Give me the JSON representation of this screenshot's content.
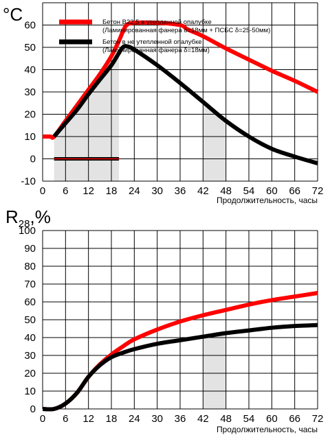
{
  "chart_data": [
    {
      "type": "line",
      "title": "",
      "ylabel": "°C",
      "xlabel": "Продолжительность, часы",
      "xlim": [
        0,
        72
      ],
      "ylim": [
        -10,
        70
      ],
      "xticks": [
        0,
        6,
        12,
        18,
        24,
        30,
        36,
        42,
        48,
        54,
        60,
        66,
        72
      ],
      "yticks": [
        -10,
        0,
        10,
        20,
        30,
        40,
        50,
        60
      ],
      "grid": true,
      "legend_position": "top",
      "shaded_regions": [
        {
          "x0": 3,
          "x1": 20,
          "y0": -10,
          "y1": "curve"
        },
        {
          "x0": 42,
          "x1": 48,
          "y0": -10,
          "y1": "curve"
        }
      ],
      "annotations": [
        {
          "type": "hline",
          "x0": 3,
          "x1": 20,
          "y": 0,
          "colors": [
            "#000000",
            "#ff0000"
          ]
        }
      ],
      "series": [
        {
          "name": "Бетон В22,5 в утепленной опалубке",
          "name_line2": "(Ламинированная фанера δ=18мм + ПСБС δ=25-50мм)",
          "color": "#ff0000",
          "x": [
            0,
            2,
            3,
            6,
            9,
            12,
            15,
            18,
            20,
            21,
            22,
            24,
            30,
            36,
            38,
            42,
            48,
            54,
            60,
            66,
            72
          ],
          "y": [
            10,
            10,
            10,
            17,
            24,
            31,
            38,
            46,
            53,
            57,
            60,
            61,
            61,
            60,
            58,
            55,
            49.5,
            44.5,
            39.5,
            35,
            30
          ]
        },
        {
          "name": "Бетон в не утепленной опалубке",
          "name_line2": "(Ламинированная фанера δ=18мм)",
          "color": "#000000",
          "x": [
            3,
            4,
            6,
            9,
            12,
            15,
            18,
            20,
            21,
            22,
            24,
            30,
            36,
            42,
            48,
            54,
            60,
            66,
            72
          ],
          "y": [
            10,
            12,
            16,
            22,
            29,
            35.5,
            42,
            47.5,
            50,
            50.5,
            49,
            42,
            34,
            25.5,
            17,
            10,
            4.5,
            1,
            -2
          ]
        }
      ]
    },
    {
      "type": "line",
      "title": "",
      "ylabel": "R28,%",
      "ylabel_main": "R",
      "ylabel_sub": "28",
      "ylabel_suffix": ",%",
      "xlabel": "Продолжительность, часы",
      "xlim": [
        0,
        72
      ],
      "ylim": [
        0,
        100
      ],
      "xticks": [
        0,
        6,
        12,
        18,
        24,
        30,
        36,
        42,
        48,
        54,
        60,
        66,
        72
      ],
      "yticks": [
        0,
        10,
        20,
        30,
        40,
        50,
        60,
        70,
        80,
        90,
        100
      ],
      "grid": true,
      "shaded_regions": [
        {
          "x0": 42,
          "x1": 48,
          "y0": 0,
          "y1": "curve"
        }
      ],
      "series": [
        {
          "name": "Бетон В22,5 в утепленной опалубке",
          "color": "#ff0000",
          "x": [
            0,
            3,
            6,
            9,
            12,
            15,
            18,
            21,
            24,
            30,
            36,
            42,
            48,
            54,
            60,
            66,
            72
          ],
          "y": [
            0,
            0,
            3,
            9,
            18,
            25,
            30.5,
            35,
            39,
            44.5,
            49,
            52.5,
            55.5,
            58.5,
            61,
            63,
            65
          ]
        },
        {
          "name": "Бетон в не утепленной опалубке",
          "color": "#000000",
          "x": [
            0,
            3,
            6,
            9,
            12,
            15,
            18,
            21,
            24,
            30,
            36,
            42,
            48,
            54,
            60,
            66,
            72
          ],
          "y": [
            0,
            0,
            3,
            9,
            18,
            24.5,
            29,
            31.5,
            33.5,
            36.5,
            38.5,
            40.5,
            42.5,
            44,
            45.5,
            46.5,
            47
          ]
        }
      ]
    }
  ]
}
